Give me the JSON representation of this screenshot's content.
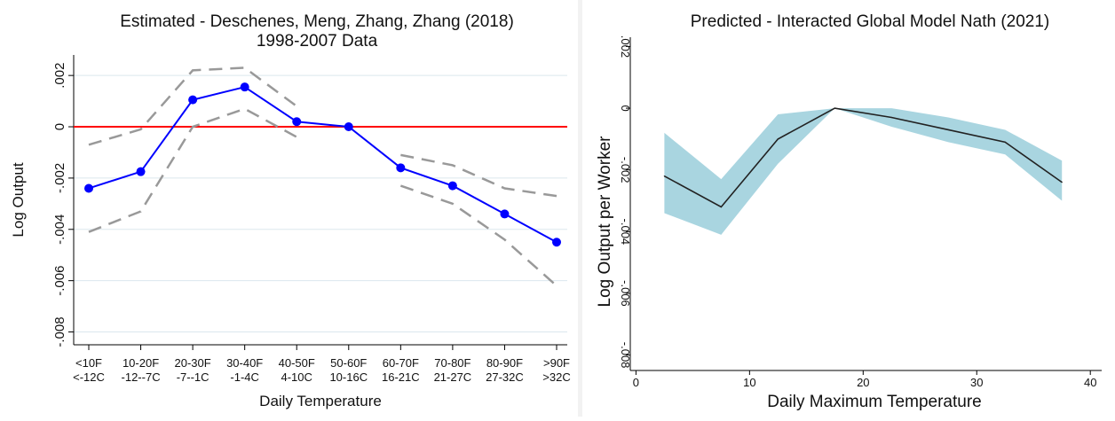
{
  "chart_data": [
    {
      "type": "line",
      "title": "Estimated - Deschenes, Meng, Zhang, Zhang (2018)",
      "subtitle": "1998-2007 Data",
      "xlabel": "Daily Temperature",
      "ylabel": "Log Output",
      "categories": [
        [
          "<10F",
          "<-12C"
        ],
        [
          "10-20F",
          "-12--7C"
        ],
        [
          "20-30F",
          "-7--1C"
        ],
        [
          "30-40F",
          "-1-4C"
        ],
        [
          "40-50F",
          "4-10C"
        ],
        [
          "50-60F",
          "10-16C"
        ],
        [
          "60-70F",
          "16-21C"
        ],
        [
          "70-80F",
          "21-27C"
        ],
        [
          "80-90F",
          "27-32C"
        ],
        [
          ">90F",
          ">32C"
        ]
      ],
      "ylim": [
        -0.0085,
        0.0028
      ],
      "yticks": [
        0.002,
        0,
        -0.002,
        -0.004,
        -0.006,
        -0.008
      ],
      "ytick_labels": [
        ".002",
        "0",
        "-.002",
        "-.004",
        "-.006",
        "-.008"
      ],
      "reference_line": {
        "y": 0,
        "color": "#ff0000"
      },
      "grid": true,
      "series": [
        {
          "role": "estimate",
          "color": "#0000ff",
          "values": [
            -0.0024,
            -0.00175,
            0.00105,
            0.00155,
            0.0002,
            0.0,
            -0.0016,
            -0.0023,
            -0.0034,
            -0.0045
          ]
        },
        {
          "role": "upper_ci",
          "color": "#999999",
          "values": [
            -0.0007,
            -0.0001,
            0.0022,
            0.0023,
            0.0008,
            null,
            -0.0011,
            -0.0015,
            -0.0024,
            -0.0027
          ]
        },
        {
          "role": "lower_ci",
          "color": "#999999",
          "values": [
            -0.0041,
            -0.0033,
            0.0,
            0.0007,
            -0.0004,
            null,
            -0.0023,
            -0.003,
            -0.0044,
            -0.0062
          ]
        }
      ]
    },
    {
      "type": "area",
      "title": "Predicted - Interacted Global Model Nath (2021)",
      "xlabel": "Daily Maximum Temperature",
      "ylabel": "Log Output per Worker",
      "xlim": [
        -0.5,
        41
      ],
      "ylim": [
        -0.0085,
        0.0023
      ],
      "xticks": [
        0,
        10,
        20,
        30,
        40
      ],
      "xtick_labels": [
        "0",
        "10",
        "20",
        "30",
        "40"
      ],
      "yticks": [
        0.002,
        0,
        -0.002,
        -0.004,
        -0.006,
        -0.008
      ],
      "ytick_labels": [
        ".002",
        "0",
        "-.002",
        "-.004",
        "-.006",
        "-.008"
      ],
      "grid": false,
      "band_color": "#a9d5e0",
      "line_color": "#222222",
      "x": [
        2.5,
        7.5,
        12.5,
        17.5,
        22.5,
        27.5,
        32.5,
        37.5
      ],
      "y": [
        -0.0022,
        -0.0032,
        -0.001,
        0.0,
        -0.0003,
        -0.0007,
        -0.0011,
        -0.0024
      ],
      "upper": [
        -0.0008,
        -0.0023,
        -0.0002,
        0.0,
        0.0,
        -0.0003,
        -0.0007,
        -0.0017
      ],
      "lower": [
        -0.0034,
        -0.0041,
        -0.0018,
        0.0,
        -0.0006,
        -0.0011,
        -0.0015,
        -0.003
      ]
    }
  ]
}
